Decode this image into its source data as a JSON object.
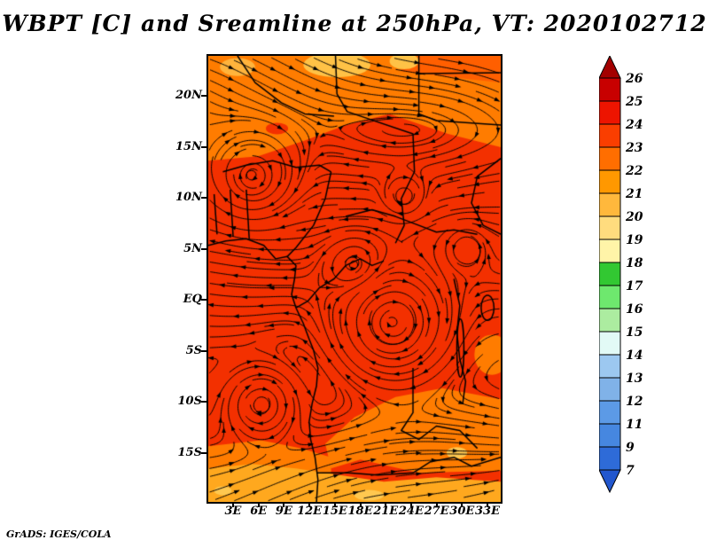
{
  "title": "WBPT [C] and Sreamline at 250hPa, VT: 2020102712",
  "footer": "GrADS: IGES/COLA",
  "chart_data": {
    "type": "heatmap",
    "title": "WBPT [C] and Sreamline at 250hPa, VT: 2020102712",
    "variable": "WBPT [C] with streamlines",
    "level": "250hPa",
    "valid_time": "2020102712",
    "y_ticks": [
      "20N",
      "15N",
      "10N",
      "5N",
      "EQ",
      "5S",
      "10S",
      "15S"
    ],
    "x_ticks": [
      "3E",
      "6E",
      "9E",
      "12E",
      "15E",
      "18E",
      "21E",
      "24E",
      "27E",
      "30E",
      "33E"
    ],
    "grid": false,
    "legend_position": "right",
    "colorbar": {
      "labels": [
        "26",
        "25",
        "24",
        "23",
        "22",
        "21",
        "20",
        "19",
        "18",
        "17",
        "16",
        "15",
        "14",
        "13",
        "12",
        "11",
        "9",
        "7"
      ],
      "segment_colors": [
        "#C80000",
        "#ED1400",
        "#FA3E00",
        "#FF6E00",
        "#FF9800",
        "#FFB83C",
        "#FFDC7E",
        "#FFF4A8",
        "#32C832",
        "#6EE86E",
        "#ACECA0",
        "#E2FAF6",
        "#9CC8F0",
        "#80B2E8",
        "#5C9AE6",
        "#4687E0",
        "#2E6BD8"
      ],
      "arrow_top_color": "#A30000",
      "arrow_bottom_color": "#2257CE",
      "outline_color": "#000000"
    },
    "field": {
      "base_color": "#F33000",
      "stream_color": "#000000",
      "regions": [
        {
          "type": "poly",
          "color": "#FF7C00",
          "pts": [
            [
              0,
              0
            ],
            [
              1,
              0
            ],
            [
              1,
              0.205
            ],
            [
              0.82,
              0.175
            ],
            [
              0.62,
              0.13
            ],
            [
              0.47,
              0.155
            ],
            [
              0.33,
              0.19
            ],
            [
              0.17,
              0.225
            ],
            [
              0,
              0.235
            ]
          ]
        },
        {
          "type": "poly",
          "color": "#FF5F00",
          "pts": [
            [
              0.66,
              0
            ],
            [
              1,
              0
            ],
            [
              1,
              0.06
            ],
            [
              0.66,
              0.035
            ]
          ]
        },
        {
          "type": "ellipse",
          "color": "#FFC246",
          "c": [
            0.44,
            0.02
          ],
          "r": [
            0.115,
            0.028
          ]
        },
        {
          "type": "ellipse",
          "color": "#FFC246",
          "c": [
            0.67,
            0.012
          ],
          "r": [
            0.05,
            0.018
          ]
        },
        {
          "type": "ellipse",
          "color": "#FFB43C",
          "c": [
            0.1,
            0.025
          ],
          "r": [
            0.06,
            0.02
          ]
        },
        {
          "type": "ellipse",
          "color": "#F33000",
          "c": [
            0.235,
            0.163
          ],
          "r": [
            0.038,
            0.013
          ]
        },
        {
          "type": "poly",
          "color": "#FF7C00",
          "pts": [
            [
              0.4,
              0.87
            ],
            [
              0.5,
              0.81
            ],
            [
              0.64,
              0.765
            ],
            [
              0.8,
              0.745
            ],
            [
              1,
              0.77
            ],
            [
              1,
              0.93
            ],
            [
              0.72,
              0.935
            ],
            [
              0.52,
              0.905
            ],
            [
              0.42,
              0.925
            ]
          ]
        },
        {
          "type": "poly",
          "color": "#FF7C00",
          "pts": [
            [
              0,
              0.875
            ],
            [
              0.18,
              0.862
            ],
            [
              0.32,
              0.88
            ],
            [
              0.42,
              0.9
            ],
            [
              0.42,
              1
            ],
            [
              0,
              1
            ]
          ]
        },
        {
          "type": "ellipse",
          "color": "#FF7C00",
          "c": [
            0.97,
            0.67
          ],
          "r": [
            0.06,
            0.045
          ]
        },
        {
          "type": "poly",
          "color": "#FFA81E",
          "pts": [
            [
              0,
              0.925
            ],
            [
              0.15,
              0.915
            ],
            [
              0.3,
              0.925
            ],
            [
              0.45,
              0.94
            ],
            [
              0.6,
              0.955
            ],
            [
              0.78,
              0.945
            ],
            [
              1,
              0.955
            ],
            [
              1,
              1
            ],
            [
              0,
              1
            ]
          ]
        },
        {
          "type": "ellipse",
          "color": "#FFC850",
          "c": [
            0.85,
            0.89
          ],
          "r": [
            0.035,
            0.013
          ]
        },
        {
          "type": "ellipse",
          "color": "#FFC850",
          "c": [
            0.55,
            0.985
          ],
          "r": [
            0.05,
            0.012
          ]
        },
        {
          "type": "ellipse",
          "color": "#FFC850",
          "c": [
            0.05,
            0.975
          ],
          "r": [
            0.03,
            0.01
          ]
        }
      ]
    },
    "flow": {
      "jet": {
        "u_top": 1.6,
        "drop": 3.2,
        "y1": 0.165,
        "w1": 0.05,
        "rise": 3.4,
        "y2": 0.715,
        "w2": 0.06
      },
      "vortices": [
        {
          "x": 0.15,
          "y": 0.27,
          "r": 0.09,
          "s": 2.2,
          "dir": 1
        },
        {
          "x": 0.67,
          "y": 0.315,
          "r": 0.045,
          "s": 2.0,
          "dir": 1
        },
        {
          "x": 0.63,
          "y": 0.6,
          "r": 0.12,
          "s": 2.6,
          "dir": 1
        },
        {
          "x": 0.18,
          "y": 0.78,
          "r": 0.075,
          "s": 2.2,
          "dir": 1
        },
        {
          "x": 0.88,
          "y": 0.43,
          "r": 0.05,
          "s": 1.6,
          "dir": -1
        },
        {
          "x": 0.5,
          "y": 0.47,
          "r": 0.07,
          "s": 1.4,
          "dir": -1
        }
      ]
    },
    "outlines": [
      [
        [
          0,
          0.425
        ],
        [
          0.06,
          0.415
        ],
        [
          0.13,
          0.41
        ],
        [
          0.19,
          0.425
        ],
        [
          0.23,
          0.455
        ],
        [
          0.27,
          0.45
        ],
        [
          0.3,
          0.47
        ],
        [
          0.295,
          0.5
        ],
        [
          0.285,
          0.535
        ],
        [
          0.3,
          0.565
        ],
        [
          0.325,
          0.6
        ],
        [
          0.345,
          0.635
        ],
        [
          0.36,
          0.66
        ],
        [
          0.375,
          0.7
        ],
        [
          0.37,
          0.74
        ],
        [
          0.355,
          0.78
        ],
        [
          0.345,
          0.82
        ],
        [
          0.35,
          0.86
        ],
        [
          0.365,
          0.9
        ],
        [
          0.375,
          0.95
        ],
        [
          0.37,
          1.0
        ]
      ],
      [
        [
          0.05,
          0.26
        ],
        [
          0.13,
          0.245
        ],
        [
          0.22,
          0.235
        ],
        [
          0.3,
          0.25
        ],
        [
          0.38,
          0.245
        ],
        [
          0.42,
          0.26
        ]
      ],
      [
        [
          0.42,
          0.26
        ],
        [
          0.4,
          0.32
        ],
        [
          0.36,
          0.38
        ],
        [
          0.3,
          0.43
        ],
        [
          0.27,
          0.45
        ]
      ],
      [
        [
          0.1,
          0.0
        ],
        [
          0.16,
          0.06
        ],
        [
          0.25,
          0.105
        ],
        [
          0.33,
          0.13
        ],
        [
          0.43,
          0.135
        ]
      ],
      [
        [
          0.435,
          0
        ],
        [
          0.44,
          0.085
        ],
        [
          0.475,
          0.125
        ],
        [
          0.7,
          0.175
        ],
        [
          0.705,
          0.26
        ],
        [
          0.66,
          0.32
        ],
        [
          0.67,
          0.38
        ],
        [
          0.64,
          0.42
        ]
      ],
      [
        [
          0.72,
          0
        ],
        [
          0.72,
          0.13
        ],
        [
          0.78,
          0.145
        ],
        [
          1,
          0.155
        ]
      ],
      [
        [
          0.72,
          0.04
        ],
        [
          1,
          0.038
        ]
      ],
      [
        [
          0.47,
          0.36
        ],
        [
          0.56,
          0.345
        ],
        [
          0.64,
          0.36
        ],
        [
          0.72,
          0.38
        ],
        [
          0.78,
          0.395
        ],
        [
          0.84,
          0.39
        ],
        [
          0.92,
          0.4
        ]
      ],
      [
        [
          0.3,
          0.565
        ],
        [
          0.34,
          0.55
        ],
        [
          0.38,
          0.52
        ],
        [
          0.43,
          0.5
        ],
        [
          0.47,
          0.47
        ],
        [
          0.52,
          0.455
        ],
        [
          0.56,
          0.47
        ],
        [
          0.6,
          0.46
        ]
      ],
      [
        [
          0.84,
          0.5
        ],
        [
          0.86,
          0.56
        ],
        [
          0.85,
          0.62
        ],
        [
          0.86,
          0.68
        ],
        [
          0.88,
          0.73
        ],
        [
          0.87,
          0.78
        ]
      ],
      [
        [
          1,
          0.23
        ],
        [
          0.92,
          0.27
        ],
        [
          0.9,
          0.33
        ],
        [
          0.94,
          0.38
        ],
        [
          1,
          0.4
        ]
      ],
      [
        [
          0.7,
          0.7
        ],
        [
          0.7,
          0.8
        ],
        [
          0.66,
          0.84
        ],
        [
          0.72,
          0.86
        ],
        [
          0.78,
          0.83
        ],
        [
          0.86,
          0.84
        ],
        [
          0.92,
          0.88
        ]
      ],
      [
        [
          0.37,
          0.935
        ],
        [
          0.48,
          0.935
        ],
        [
          0.58,
          0.94
        ],
        [
          0.7,
          0.935
        ]
      ],
      [
        [
          0.7,
          0.935
        ],
        [
          0.76,
          0.91
        ],
        [
          0.84,
          0.9
        ],
        [
          0.9,
          0.92
        ],
        [
          1,
          0.9
        ]
      ],
      [
        [
          0.02,
          0.31
        ],
        [
          0.03,
          0.4
        ]
      ],
      [
        [
          0.075,
          0.3
        ],
        [
          0.085,
          0.405
        ]
      ],
      [
        [
          0.13,
          0.3
        ],
        [
          0.14,
          0.41
        ]
      ]
    ],
    "lakes": [
      {
        "c": [
          0.955,
          0.565
        ],
        "r": [
          0.022,
          0.028
        ]
      },
      {
        "c": [
          0.862,
          0.655
        ],
        "r": [
          0.012,
          0.065
        ]
      }
    ]
  }
}
